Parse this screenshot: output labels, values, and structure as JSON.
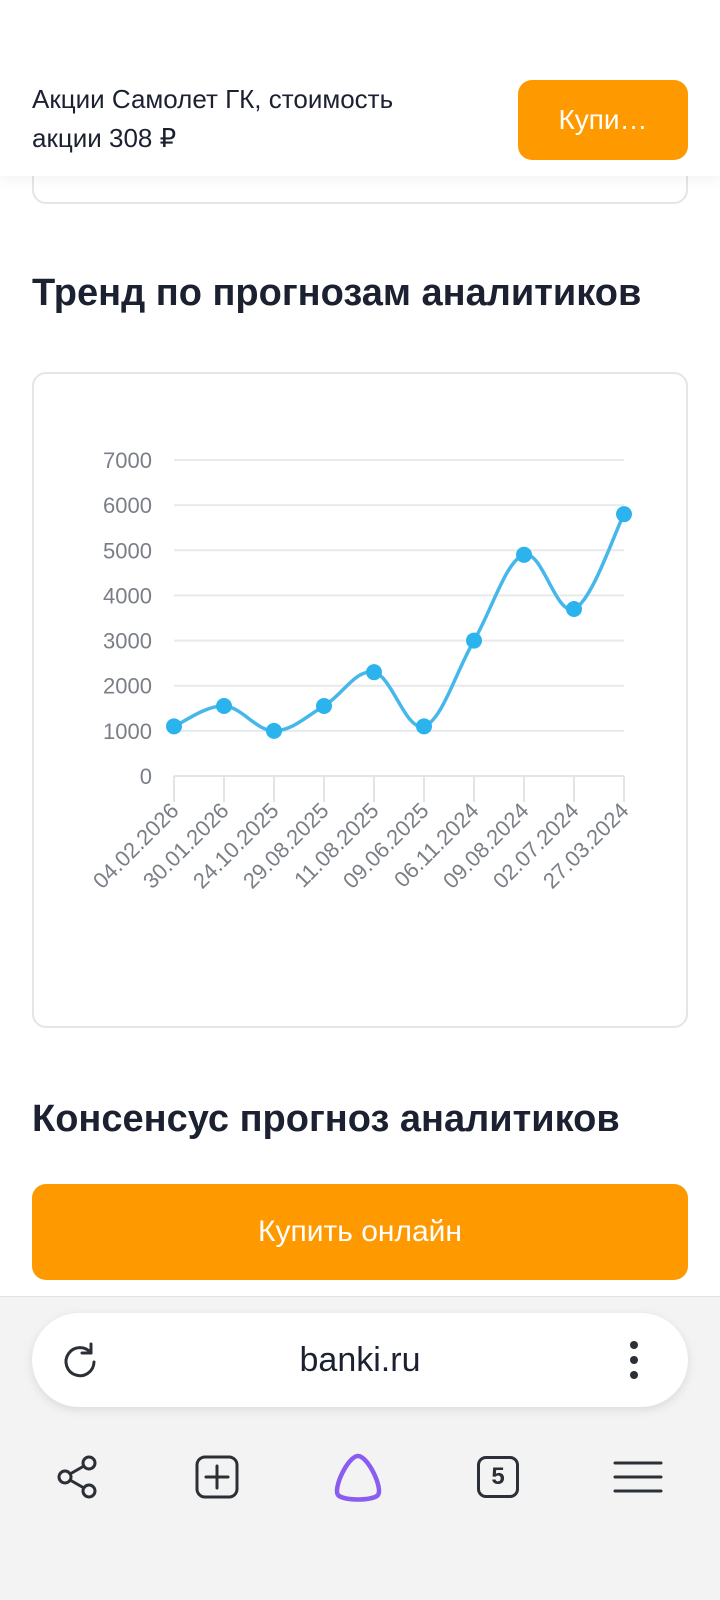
{
  "header": {
    "title": "Акции Самолет ГК,  стоимость акции 308 ₽",
    "buy_label": "Купи…"
  },
  "sections": {
    "trend_title": "Тренд по прогнозам аналитиков",
    "consensus_title": "Консенсус прогноз аналитиков"
  },
  "buy_online_label": "Купить онлайн",
  "browser": {
    "url": "banki.ru",
    "tabs_count": "5"
  },
  "colors": {
    "accent": "#ff9900",
    "line": "#45b7ea",
    "point": "#2bb3ee",
    "alice": "#8a5cf0"
  },
  "icons": [
    "reload-icon",
    "more-vertical-icon",
    "share-icon",
    "new-tab-icon",
    "alice-icon",
    "tabs-icon",
    "menu-icon"
  ],
  "chart_data": {
    "type": "line",
    "categories": [
      "04.02.2026",
      "30.01.2026",
      "24.10.2025",
      "29.08.2025",
      "11.08.2025",
      "09.06.2025",
      "06.11.2024",
      "09.08.2024",
      "02.07.2024",
      "27.03.2024"
    ],
    "values": [
      1100,
      1550,
      1000,
      1550,
      2300,
      1100,
      3000,
      4900,
      3700,
      5800
    ],
    "yticks": [
      "0",
      "1000",
      "2000",
      "3000",
      "4000",
      "5000",
      "6000",
      "7000"
    ],
    "ylim": [
      0,
      7000
    ],
    "grid": true,
    "smooth": true
  }
}
